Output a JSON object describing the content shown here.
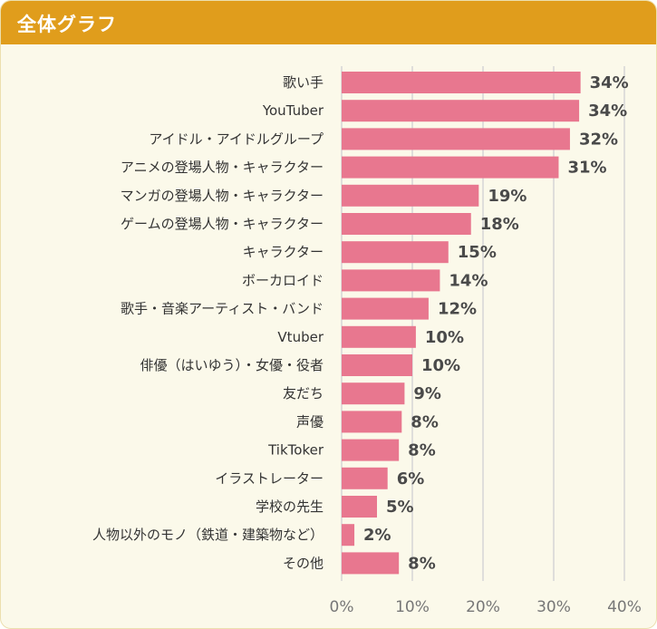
{
  "header": {
    "title": "全体グラフ"
  },
  "colors": {
    "accent": "#e09d1c",
    "bar": "#e8778f",
    "background": "#fbf9ea",
    "grid": "#d6d6d6"
  },
  "chart_data": {
    "type": "bar",
    "orientation": "horizontal",
    "title": "全体グラフ",
    "xlabel": "",
    "ylabel": "",
    "xlim": [
      0,
      40
    ],
    "ticks": [
      0,
      10,
      20,
      30,
      40
    ],
    "tick_labels": [
      "0%",
      "10%",
      "20%",
      "30%",
      "40%"
    ],
    "grid": true,
    "categories": [
      "歌い手",
      "YouTuber",
      "アイドル・アイドルグループ",
      "アニメの登場人物・キャラクター",
      "マンガの登場人物・キャラクター",
      "ゲームの登場人物・キャラクター",
      "キャラクター",
      "ボーカロイド",
      "歌手・音楽アーティスト・バンド",
      "Vtuber",
      "俳優（はいゆう）・女優・役者",
      "友だち",
      "声優",
      "TikToker",
      "イラストレーター",
      "学校の先生",
      "人物以外のモノ（鉄道・建築物など）",
      "その他"
    ],
    "values": [
      33.8,
      33.6,
      32.3,
      30.7,
      19.4,
      18.3,
      15.1,
      13.9,
      12.3,
      10.5,
      10.0,
      8.9,
      8.5,
      8.1,
      6.5,
      5.0,
      1.8,
      8.1
    ],
    "data_labels": [
      "34%",
      "34%",
      "32%",
      "31%",
      "19%",
      "18%",
      "15%",
      "14%",
      "12%",
      "10%",
      "10%",
      "9%",
      "8%",
      "8%",
      "6%",
      "5%",
      "2%",
      "8%"
    ]
  }
}
